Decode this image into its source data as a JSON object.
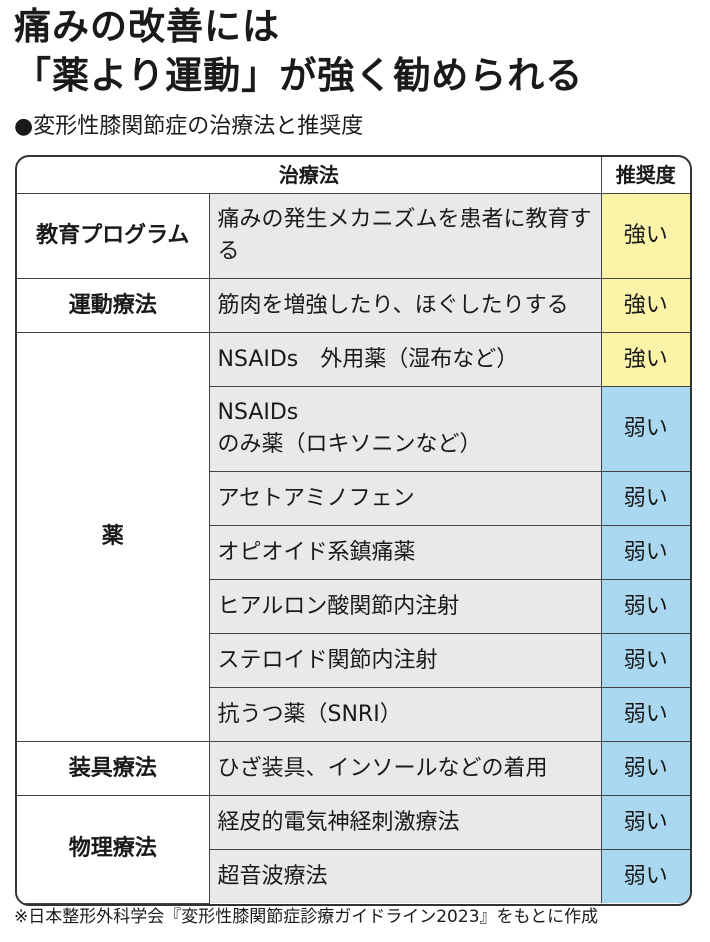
{
  "header": {
    "title": [
      "痛みの改善には",
      "「薬より運動」が強く勧められる"
    ],
    "subtitle": "●変形性膝関節症の治療法と推奨度"
  },
  "table": {
    "columns": [
      "治療法",
      "推奨度"
    ],
    "groups": [
      {
        "name": "教育プログラム",
        "rows": [
          {
            "treatment": "痛みの発生メカニズムを患者に教育する",
            "recommendation": "強い",
            "color": "#fbf3a8"
          }
        ]
      },
      {
        "name": "運動療法",
        "rows": [
          {
            "treatment": "筋肉を増強したり、ほぐしたりする",
            "recommendation": "強い",
            "color": "#fbf3a8"
          }
        ]
      },
      {
        "name": "薬",
        "rows": [
          {
            "treatment": "NSAIDs　外用薬（湿布など）",
            "recommendation": "強い",
            "color": "#fbf3a8"
          },
          {
            "treatment": "NSAIDs\nのみ薬（ロキソニンなど）",
            "recommendation": "弱い",
            "color": "#a9d8f0"
          },
          {
            "treatment": "アセトアミノフェン",
            "recommendation": "弱い",
            "color": "#a9d8f0"
          },
          {
            "treatment": "オピオイド系鎮痛薬",
            "recommendation": "弱い",
            "color": "#a9d8f0"
          },
          {
            "treatment": "ヒアルロン酸関節内注射",
            "recommendation": "弱い",
            "color": "#a9d8f0"
          },
          {
            "treatment": "ステロイド関節内注射",
            "recommendation": "弱い",
            "color": "#a9d8f0"
          },
          {
            "treatment": "抗うつ薬（SNRI）",
            "recommendation": "弱い",
            "color": "#a9d8f0"
          }
        ]
      },
      {
        "name": "装具療法",
        "rows": [
          {
            "treatment": "ひざ装具、インソールなどの着用",
            "recommendation": "弱い",
            "color": "#a9d8f0"
          }
        ]
      },
      {
        "name": "物理療法",
        "rows": [
          {
            "treatment": "経皮的電気神経刺激療法",
            "recommendation": "弱い",
            "color": "#a9d8f0"
          },
          {
            "treatment": "超音波療法",
            "recommendation": "弱い",
            "color": "#a9d8f0"
          }
        ]
      }
    ]
  },
  "footnote": "※日本整形外科学会『変形性膝関節症診療ガイドライン2023』をもとに作成"
}
